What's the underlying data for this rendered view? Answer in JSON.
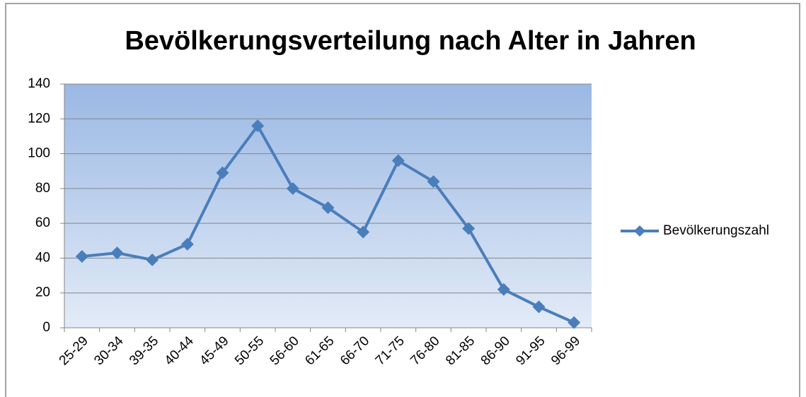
{
  "chart_data": {
    "type": "line",
    "title": "Bevölkerungsverteilung nach Alter in Jahren",
    "categories": [
      "25-29",
      "30-34",
      "39-35",
      "40-44",
      "45-49",
      "50-55",
      "56-60",
      "61-65",
      "66-70",
      "71-75",
      "76-80",
      "81-85",
      "86-90",
      "91-95",
      "96-99"
    ],
    "series": [
      {
        "name": "Bevölkerungszahl",
        "color": "#4a7ebb",
        "values": [
          41,
          43,
          39,
          48,
          89,
          116,
          80,
          69,
          55,
          96,
          84,
          57,
          22,
          12,
          3
        ]
      }
    ],
    "ylim": [
      0,
      140
    ],
    "yticks": [
      0,
      20,
      40,
      60,
      80,
      100,
      120,
      140
    ],
    "grid": true,
    "legend": "right"
  }
}
